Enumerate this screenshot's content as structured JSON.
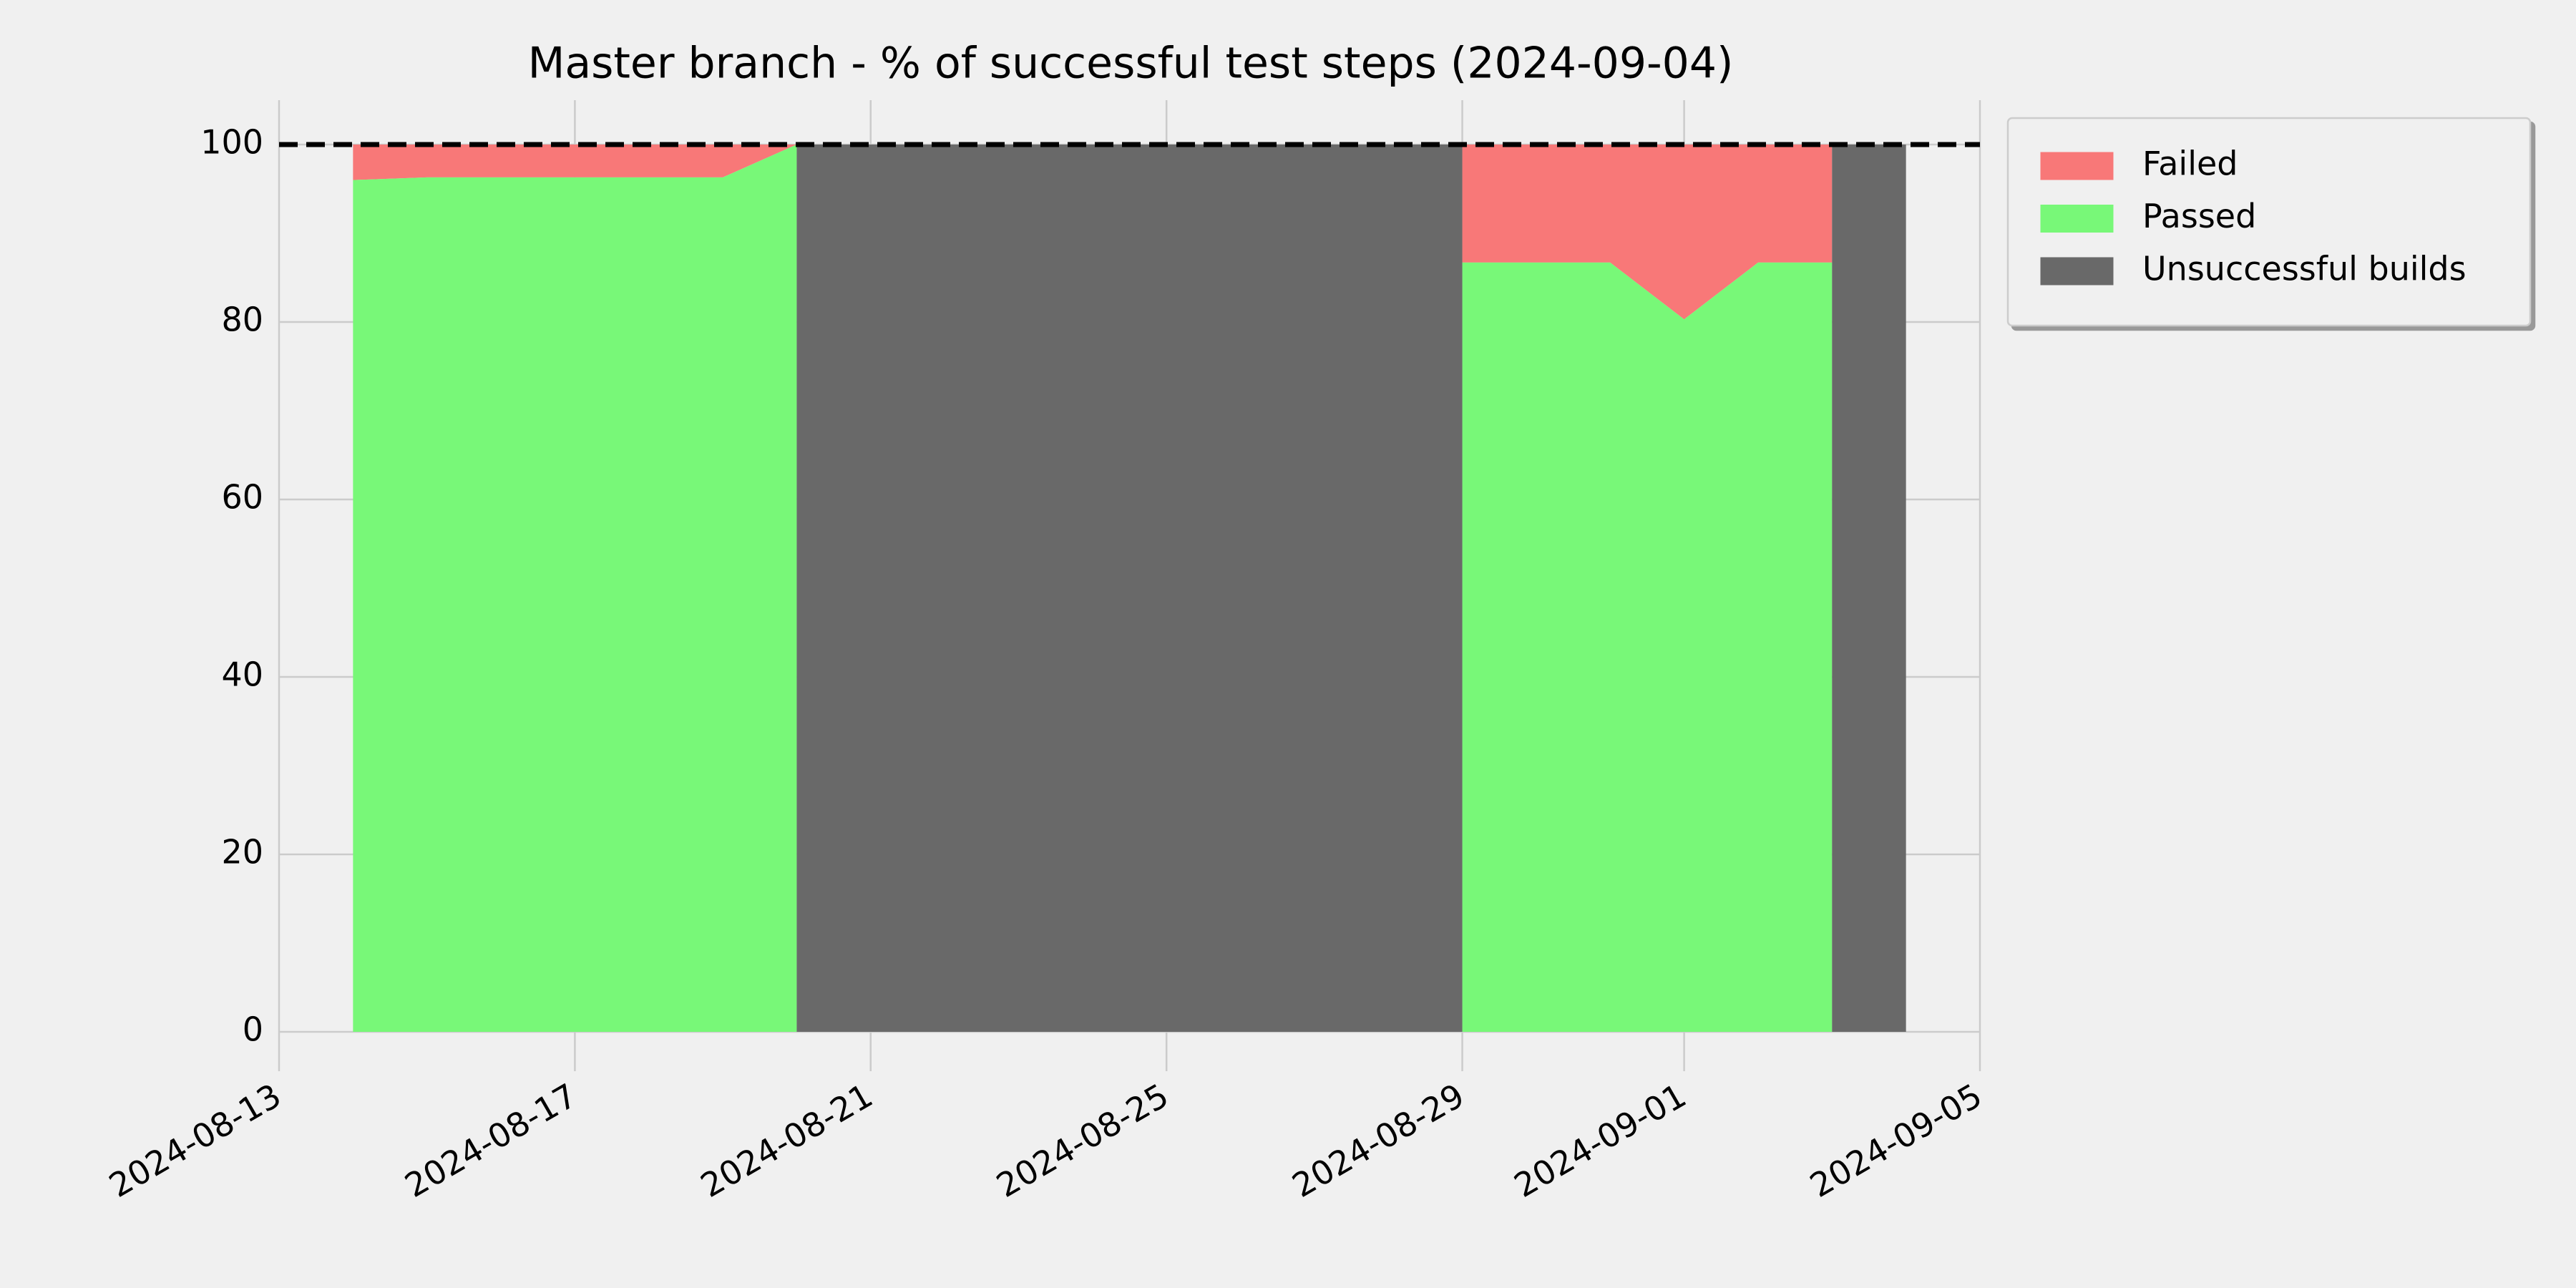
{
  "chart_data": {
    "type": "area",
    "title": "Master branch - % of successful test steps (2024-09-04)",
    "x": [
      "2024-08-14",
      "2024-08-15",
      "2024-08-16",
      "2024-08-17",
      "2024-08-18",
      "2024-08-19",
      "2024-08-20",
      "2024-08-21",
      "2024-08-22",
      "2024-08-23",
      "2024-08-24",
      "2024-08-25",
      "2024-08-26",
      "2024-08-27",
      "2024-08-28",
      "2024-08-29",
      "2024-08-30",
      "2024-08-31",
      "2024-09-01",
      "2024-09-02",
      "2024-09-03",
      "2024-09-04"
    ],
    "series": [
      {
        "name": "Failed",
        "color": "#f87878",
        "stack": true,
        "values": [
          4,
          3.7,
          3.7,
          3.7,
          3.7,
          3.7,
          0,
          null,
          null,
          null,
          null,
          null,
          null,
          null,
          null,
          13.3,
          13.3,
          13.3,
          19.7,
          13.3,
          13.3,
          null
        ]
      },
      {
        "name": "Passed",
        "color": "#78f878",
        "stack": true,
        "values": [
          96,
          96.3,
          96.3,
          96.3,
          96.3,
          96.3,
          100,
          null,
          null,
          null,
          null,
          null,
          null,
          null,
          null,
          86.7,
          86.7,
          86.7,
          80.3,
          86.7,
          86.7,
          null
        ]
      },
      {
        "name": "Unsuccessful builds",
        "color": "#696969",
        "stack": false,
        "values": [
          null,
          null,
          null,
          null,
          null,
          null,
          100,
          100,
          100,
          100,
          100,
          100,
          100,
          100,
          100,
          100,
          null,
          null,
          null,
          null,
          100,
          100
        ]
      }
    ],
    "xlim": [
      "2024-08-13",
      "2024-09-05"
    ],
    "xticks": [
      "2024-08-13",
      "2024-08-17",
      "2024-08-21",
      "2024-08-25",
      "2024-08-29",
      "2024-09-01",
      "2024-09-05"
    ],
    "ylim": [
      0,
      105
    ],
    "yticks": [
      0,
      20,
      40,
      60,
      80,
      100
    ],
    "reference_line": 100,
    "grid": true,
    "legend": "outside upper right"
  }
}
